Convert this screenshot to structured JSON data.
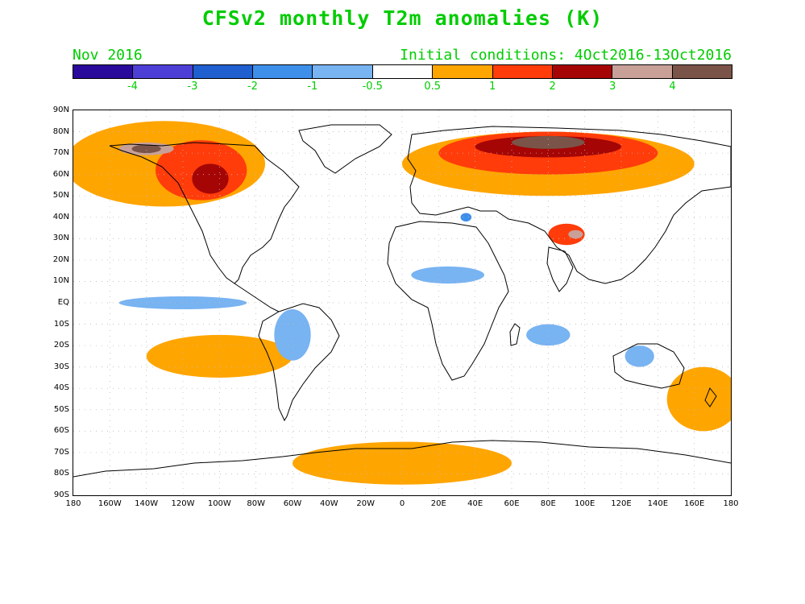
{
  "title": "CFSv2 monthly T2m anomalies (K)",
  "valid_month": "Nov 2016",
  "initial_conditions": "Initial conditions: 4Oct2016-13Oct2016",
  "text_color": "#00cc00",
  "colorbar": {
    "colors": [
      "#2a0a9a",
      "#4d3fd6",
      "#1f5fd0",
      "#3d8fea",
      "#78b3f2",
      "#ffffff",
      "#ffa500",
      "#ff3c0a",
      "#a50505",
      "#c8a098",
      "#7a5448"
    ],
    "labels": [
      "-4",
      "-3",
      "-2",
      "-1",
      "-0.5",
      "0.5",
      "1",
      "2",
      "3",
      "4"
    ]
  },
  "lat_labels": [
    "90N",
    "80N",
    "70N",
    "60N",
    "50N",
    "40N",
    "30N",
    "20N",
    "10N",
    "EQ",
    "10S",
    "20S",
    "30S",
    "40S",
    "50S",
    "60S",
    "70S",
    "80S",
    "90S"
  ],
  "lon_labels": [
    "180",
    "160W",
    "140W",
    "120W",
    "100W",
    "80W",
    "60W",
    "40W",
    "20W",
    "0",
    "20E",
    "40E",
    "60E",
    "80E",
    "100E",
    "120E",
    "140E",
    "160E",
    "180"
  ],
  "anomaly_regions": [
    {
      "level": "0.5-1",
      "color": "#ffa500",
      "lon": -130,
      "lat": 65,
      "rlon": 55,
      "rlat": 20
    },
    {
      "level": "1-2",
      "color": "#ff3c0a",
      "lon": -110,
      "lat": 62,
      "rlon": 25,
      "rlat": 14
    },
    {
      "level": "2-3",
      "color": "#a50505",
      "lon": -105,
      "lat": 58,
      "rlon": 10,
      "rlat": 7
    },
    {
      "level": "3-4",
      "color": "#c8a098",
      "lon": -140,
      "lat": 72,
      "rlon": 15,
      "rlat": 3
    },
    {
      "level": "4+",
      "color": "#7a5448",
      "lon": -140,
      "lat": 72,
      "rlon": 8,
      "rlat": 2
    },
    {
      "level": "0.5-1",
      "color": "#ffa500",
      "lon": 80,
      "lat": 65,
      "rlon": 80,
      "rlat": 15
    },
    {
      "level": "1-2",
      "color": "#ff3c0a",
      "lon": 80,
      "lat": 70,
      "rlon": 60,
      "rlat": 10
    },
    {
      "level": "2-3",
      "color": "#a50505",
      "lon": 80,
      "lat": 73,
      "rlon": 40,
      "rlat": 5
    },
    {
      "level": "4+",
      "color": "#7a5448",
      "lon": 80,
      "lat": 75,
      "rlon": 20,
      "rlat": 3
    },
    {
      "level": "1-2",
      "color": "#ff3c0a",
      "lon": 90,
      "lat": 32,
      "rlon": 10,
      "rlat": 5
    },
    {
      "level": "3-4",
      "color": "#c8a098",
      "lon": 95,
      "lat": 32,
      "rlon": 4,
      "rlat": 2
    },
    {
      "level": "0.5-1",
      "color": "#ffa500",
      "lon": 0,
      "lat": -75,
      "rlon": 60,
      "rlat": 10
    },
    {
      "level": "0.5-1",
      "color": "#ffa500",
      "lon": -100,
      "lat": -25,
      "rlon": 40,
      "rlat": 10
    },
    {
      "level": "0.5-1",
      "color": "#ffa500",
      "lon": 165,
      "lat": -45,
      "rlon": 20,
      "rlat": 15
    },
    {
      "level": "-0.5",
      "color": "#78b3f2",
      "lon": 25,
      "lat": 13,
      "rlon": 20,
      "rlat": 4
    },
    {
      "level": "-0.5",
      "color": "#78b3f2",
      "lon": -60,
      "lat": -15,
      "rlon": 10,
      "rlat": 12
    },
    {
      "level": "-1",
      "color": "#3d8fea",
      "lon": 35,
      "lat": 40,
      "rlon": 3,
      "rlat": 2
    },
    {
      "level": "-0.5",
      "color": "#78b3f2",
      "lon": -120,
      "lat": 0,
      "rlon": 35,
      "rlat": 3
    },
    {
      "level": "-0.5",
      "color": "#78b3f2",
      "lon": 130,
      "lat": -25,
      "rlon": 8,
      "rlat": 5
    },
    {
      "level": "-0.5",
      "color": "#78b3f2",
      "lon": 80,
      "lat": -15,
      "rlon": 12,
      "rlat": 5
    }
  ]
}
